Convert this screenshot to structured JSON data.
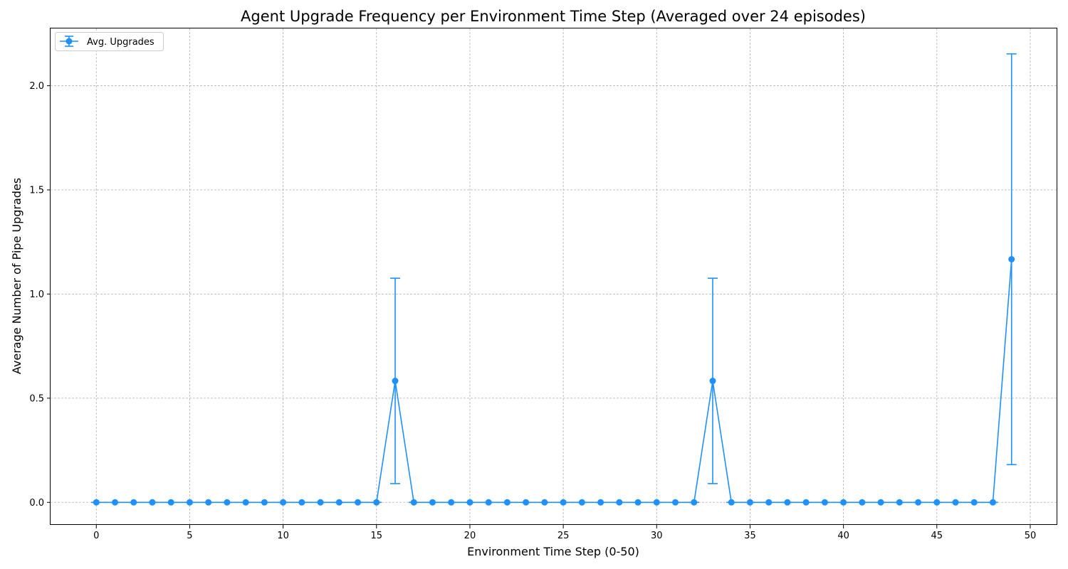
{
  "chart_data": {
    "type": "line",
    "title": "Agent Upgrade Frequency per Environment Time Step (Averaged over 24 episodes)",
    "xlabel": "Environment Time Step (0-50)",
    "ylabel": "Average Number of Pipe Upgrades",
    "xlim": [
      -2.45,
      51.45
    ],
    "ylim": [
      -0.1083,
      2.275
    ],
    "xticks": [
      0,
      5,
      10,
      15,
      20,
      25,
      30,
      35,
      40,
      45,
      50
    ],
    "xtick_labels": [
      "0",
      "5",
      "10",
      "15",
      "20",
      "25",
      "30",
      "35",
      "40",
      "45",
      "50"
    ],
    "yticks": [
      0.0,
      0.5,
      1.0,
      1.5,
      2.0
    ],
    "ytick_labels": [
      "0.0",
      "0.5",
      "1.0",
      "1.5",
      "2.0"
    ],
    "grid": true,
    "legend_position": "top-left",
    "color": "#1e90ff",
    "series": [
      {
        "name": "Avg. Upgrades",
        "x": [
          0,
          1,
          2,
          3,
          4,
          5,
          6,
          7,
          8,
          9,
          10,
          11,
          12,
          13,
          14,
          15,
          16,
          17,
          18,
          19,
          20,
          21,
          22,
          23,
          24,
          25,
          26,
          27,
          28,
          29,
          30,
          31,
          32,
          33,
          34,
          35,
          36,
          37,
          38,
          39,
          40,
          41,
          42,
          43,
          44,
          45,
          46,
          47,
          48,
          49
        ],
        "y": [
          0,
          0,
          0,
          0,
          0,
          0,
          0,
          0,
          0,
          0,
          0,
          0,
          0,
          0,
          0,
          0,
          0.583,
          0,
          0,
          0,
          0,
          0,
          0,
          0,
          0,
          0,
          0,
          0,
          0,
          0,
          0,
          0,
          0,
          0.583,
          0,
          0,
          0,
          0,
          0,
          0,
          0,
          0,
          0,
          0,
          0,
          0,
          0,
          0,
          0,
          1.167
        ],
        "error": [
          0,
          0,
          0,
          0,
          0,
          0,
          0,
          0,
          0,
          0,
          0,
          0,
          0,
          0,
          0,
          0,
          0.493,
          0,
          0,
          0,
          0,
          0,
          0,
          0,
          0,
          0,
          0,
          0,
          0,
          0,
          0,
          0,
          0,
          0.493,
          0,
          0,
          0,
          0,
          0,
          0,
          0,
          0,
          0,
          0,
          0,
          0,
          0,
          0,
          0,
          0.986
        ]
      }
    ]
  }
}
